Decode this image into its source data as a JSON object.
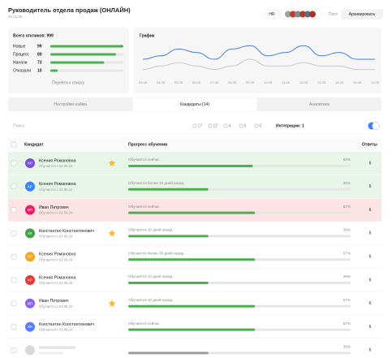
{
  "header": {
    "title": "Руководитель отдела продаж (ОНЛАЙН)",
    "date": "20.01.26",
    "hr": "HR",
    "post": "Пост",
    "archive": "Архивировать"
  },
  "summary": {
    "total": "Всего откликов: 999",
    "color": "#4caf50",
    "rows": [
      {
        "label": "Новые",
        "value": 99
      },
      {
        "label": "Процесс",
        "value": 89
      },
      {
        "label": "Наняли",
        "value": 73
      },
      {
        "label": "Отказали",
        "value": 10
      }
    ],
    "link": "Перейти к списку"
  },
  "graph": {
    "type": "line",
    "title": "График",
    "x": [
      "03.05",
      "04.05",
      "05.05",
      "06.05",
      "07.05",
      "08.05",
      "09.05",
      "10.05",
      "11.05",
      "12.05",
      "13.05",
      "14.05",
      "15.05",
      "16.05"
    ],
    "series": [
      {
        "color": "#4a7fd6",
        "values": [
          5,
          6,
          8,
          7,
          5,
          8,
          9,
          6,
          7,
          9,
          6,
          7,
          5,
          5
        ]
      },
      {
        "color": "#c9c9c9",
        "values": [
          2,
          3,
          4,
          3,
          2,
          3,
          5,
          3,
          3,
          4,
          3,
          3,
          2,
          2
        ]
      }
    ],
    "ylim": [
      0,
      10
    ]
  },
  "tabs": [
    "Настройки найма",
    "Кандидаты (14)",
    "Аналитика"
  ],
  "active_tab": 1,
  "toolbar": {
    "search": "Поиск",
    "filters": [
      17,
      12,
      4,
      5,
      0
    ],
    "integrations": "Интеграции: 1"
  },
  "table": {
    "columns": [
      "Кандидат",
      "Прогресс обучения",
      "Ответы"
    ],
    "bar_color": "#4caf50",
    "rows": [
      {
        "initials": "КР",
        "name": "Ксения Романовна",
        "since": "Обучается с 02.08.24",
        "status": "Обучается сейчас",
        "progress": 56,
        "progress_label": "56%",
        "answers": 6,
        "starred": true,
        "highlight": "#e8f6e9",
        "avatar_color": "#7b4fd6"
      },
      {
        "initials": "КР",
        "name": "Ксения Романовна",
        "since": "Обучается с 02.08.24",
        "status": "Обучается более 30 дней назад",
        "progress": 36,
        "progress_label": "36%",
        "answers": 6,
        "starred": false,
        "highlight": "#e8f6e9",
        "avatar_color": "#3b82f6"
      },
      {
        "initials": "ИП",
        "name": "Иван Петрович",
        "since": "Обучается с 02.08.24",
        "status": "Обучается сейчас",
        "progress": 57,
        "progress_label": "57%",
        "answers": 6,
        "starred": false,
        "highlight": "#fbe3e6",
        "avatar_color": "#e91e63"
      },
      {
        "initials": "КК",
        "name": "Константин Константинович",
        "since": "Обучается с 02.08.24",
        "status": "Обучается 10 дней назад",
        "progress": 36,
        "progress_label": "36%",
        "answers": 6,
        "starred": true,
        "avatar_color": "#43a047"
      },
      {
        "initials": "КР",
        "name": "Ксения Романовна",
        "since": "Обучается с 02.08.24",
        "status": "Обучается более 30 дней назад",
        "progress": 57,
        "progress_label": "57%",
        "answers": 6,
        "starred": false,
        "avatar_color": "#f5a623"
      },
      {
        "initials": "КР",
        "name": "Ксения Романовна",
        "since": "Обучается с 02.08.24",
        "status": "Обучается 10 дней назад",
        "progress": 36,
        "progress_label": "36%",
        "answers": 6,
        "starred": false,
        "avatar_color": "#e53935"
      },
      {
        "initials": "ИП",
        "name": "Иван Петрович",
        "since": "Обучается с 02.08.24",
        "status": "Обучается 10 дней назад",
        "progress": 57,
        "progress_label": "57%",
        "answers": 6,
        "starred": true,
        "avatar_color": "#8e63e6"
      },
      {
        "initials": "КК",
        "name": "Константин Константинович",
        "since": "Обучается с 02.08.24",
        "status": "Обучается сейчас",
        "progress": 57,
        "progress_label": "57%",
        "answers": 6,
        "starred": false,
        "avatar_color": "#5c7cfa"
      },
      {
        "progress": 36,
        "progress_label": "36%",
        "answers": 6,
        "starred": false,
        "avatar_color": "#d9d9d9",
        "bar_color": "#9e9e9e"
      }
    ]
  }
}
